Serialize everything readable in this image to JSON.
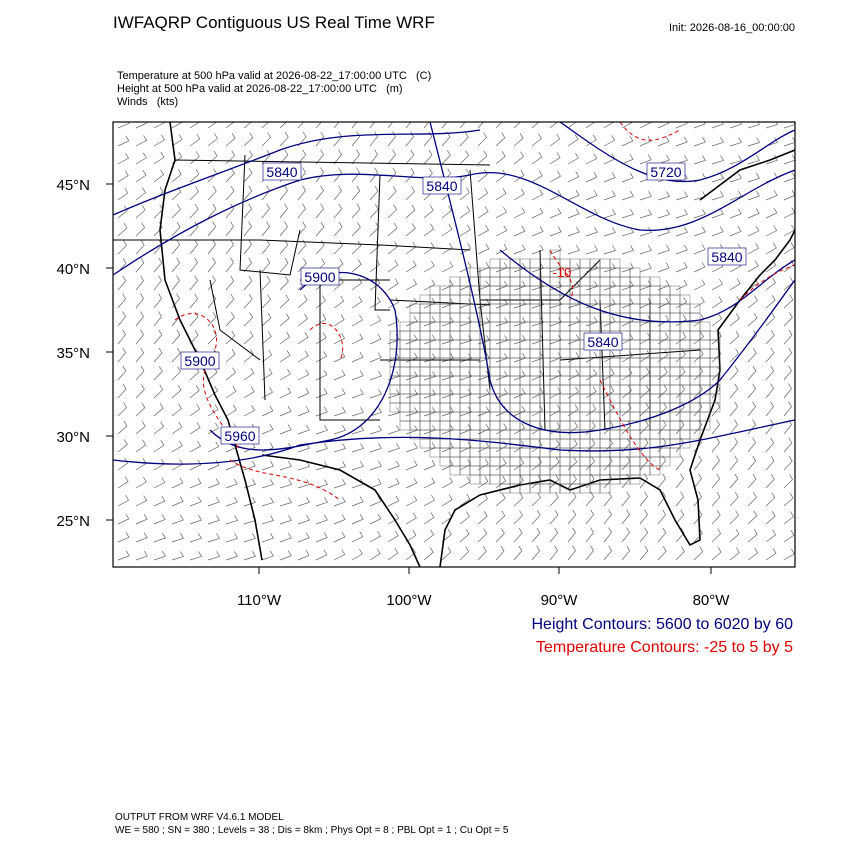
{
  "header": {
    "title": "IWFAQRP Contiguous US Real Time WRF",
    "init": "Init: 2026-08-16_00:00:00"
  },
  "fields": [
    "Temperature at 500 hPa valid at 2026-08-22_17:00:00 UTC   (C)",
    "Height at 500 hPa valid at 2026-08-22_17:00:00 UTC   (m)",
    "Winds   (kts)"
  ],
  "map": {
    "lat_labels": [
      "45°N",
      "40°N",
      "35°N",
      "30°N",
      "25°N"
    ],
    "lon_labels": [
      "110°W",
      "100°W",
      "90°W",
      "80°W"
    ],
    "height_labels": [
      "5840",
      "5840",
      "5720",
      "5840",
      "5900",
      "5840",
      "5900",
      "5960"
    ],
    "temperature_labels": [
      "-10"
    ]
  },
  "legend": [
    "Height Contours: 5600 to 6020 by 60",
    "Temperature Contours: -25 to 5 by 5"
  ],
  "footer": [
    "OUTPUT FROM WRF V4.6.1 MODEL",
    "WE = 580 ; SN = 380 ; Levels = 38 ; Dis = 8km ; Phys Opt = 8 ; PBL Opt = 1 ; Cu Opt = 5"
  ]
}
